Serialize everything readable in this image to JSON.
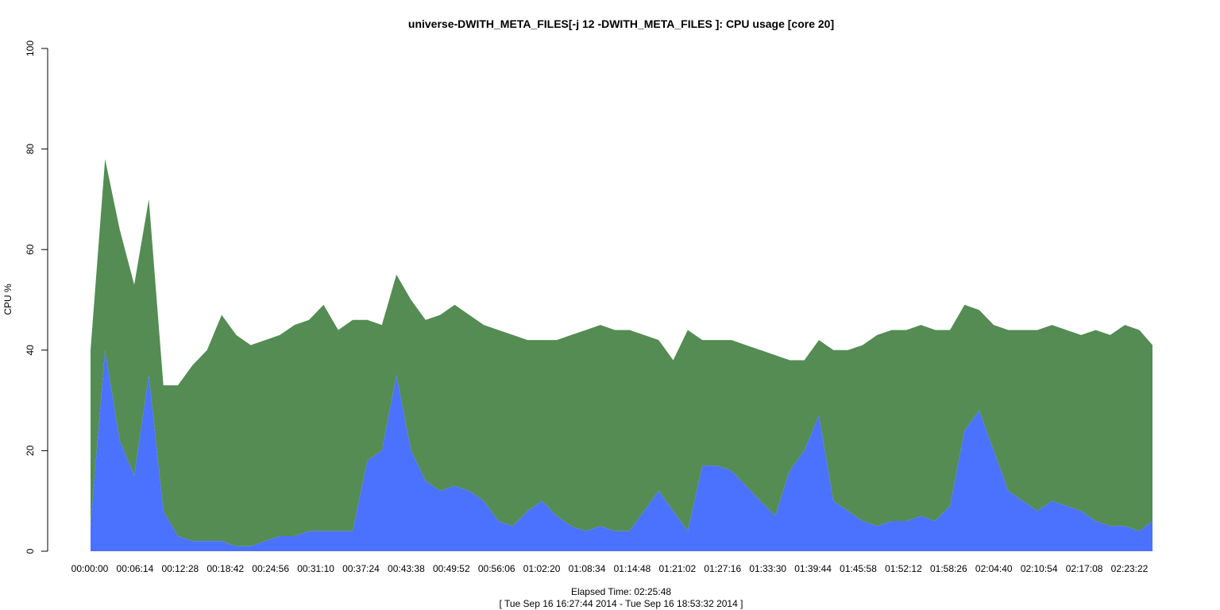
{
  "chart_data": {
    "type": "area",
    "title": "universe-DWITH_META_FILES[-j 12 -DWITH_META_FILES ]: CPU usage [core 20]",
    "xlabel": "Elapsed Time: 02:25:48",
    "xlabel_sub": "[ Tue Sep 16 16:27:44 2014 - Tue Sep 16 18:53:32 2014 ]",
    "ylabel": "CPU %",
    "ylim": [
      0,
      100
    ],
    "yticks": [
      0,
      20,
      40,
      60,
      80,
      100
    ],
    "xlim_seconds": [
      0,
      8748
    ],
    "xtick_labels": [
      "00:00:00",
      "00:06:14",
      "00:12:28",
      "00:18:42",
      "00:24:56",
      "00:31:10",
      "00:37:24",
      "00:43:38",
      "00:49:52",
      "00:56:06",
      "01:02:20",
      "01:08:34",
      "01:14:48",
      "01:21:02",
      "01:27:16",
      "01:33:30",
      "01:39:44",
      "01:45:58",
      "01:52:12",
      "01:58:26",
      "02:04:40",
      "02:10:54",
      "02:17:08",
      "02:23:22"
    ],
    "grid": false,
    "stacked": true,
    "colors": {
      "series_lower": "#4a72ff",
      "series_upper": "#548c54"
    },
    "x": [
      "00:00:00",
      "00:02:00",
      "00:04:00",
      "00:06:00",
      "00:08:00",
      "00:10:00",
      "00:12:00",
      "00:14:00",
      "00:16:00",
      "00:18:00",
      "00:20:00",
      "00:22:00",
      "00:24:00",
      "00:26:00",
      "00:28:00",
      "00:30:00",
      "00:32:00",
      "00:34:00",
      "00:36:00",
      "00:38:00",
      "00:40:00",
      "00:42:00",
      "00:44:00",
      "00:46:00",
      "00:48:00",
      "00:50:00",
      "00:52:00",
      "00:54:00",
      "00:56:00",
      "00:58:00",
      "01:00:00",
      "01:02:00",
      "01:04:00",
      "01:06:00",
      "01:08:00",
      "01:10:00",
      "01:12:00",
      "01:14:00",
      "01:16:00",
      "01:18:00",
      "01:20:00",
      "01:22:00",
      "01:24:00",
      "01:26:00",
      "01:28:00",
      "01:30:00",
      "01:32:00",
      "01:34:00",
      "01:36:00",
      "01:38:00",
      "01:40:00",
      "01:42:00",
      "01:44:00",
      "01:46:00",
      "01:48:00",
      "01:50:00",
      "01:52:00",
      "01:54:00",
      "01:56:00",
      "01:58:00",
      "02:00:00",
      "02:02:00",
      "02:04:00",
      "02:06:00",
      "02:08:00",
      "02:10:00",
      "02:12:00",
      "02:14:00",
      "02:16:00",
      "02:18:00",
      "02:20:00",
      "02:22:00",
      "02:24:00",
      "02:25:48"
    ],
    "series": [
      {
        "values": [
          5,
          40,
          22,
          15,
          35,
          8,
          3,
          2,
          2,
          2,
          1,
          1,
          2,
          3,
          3,
          4,
          4,
          4,
          4,
          18,
          20,
          35,
          20,
          14,
          12,
          13,
          12,
          10,
          6,
          5,
          8,
          10,
          7,
          5,
          4,
          5,
          4,
          4,
          8,
          12,
          8,
          4,
          17,
          17,
          16,
          13,
          10,
          7,
          16,
          20,
          27,
          10,
          8,
          6,
          5,
          6,
          6,
          7,
          6,
          9,
          24,
          28,
          20,
          12,
          10,
          8,
          10,
          9,
          8,
          6,
          5,
          5,
          4,
          6
        ]
      },
      {
        "values": [
          35,
          38,
          42,
          38,
          35,
          25,
          30,
          35,
          38,
          45,
          42,
          40,
          40,
          40,
          42,
          42,
          45,
          40,
          42,
          28,
          25,
          20,
          30,
          32,
          35,
          36,
          35,
          35,
          38,
          38,
          34,
          32,
          35,
          38,
          40,
          40,
          40,
          40,
          35,
          30,
          30,
          40,
          25,
          25,
          26,
          28,
          30,
          32,
          22,
          18,
          15,
          30,
          32,
          35,
          38,
          38,
          38,
          38,
          38,
          35,
          25,
          20,
          25,
          32,
          34,
          36,
          35,
          35,
          35,
          38,
          38,
          40,
          40,
          35
        ]
      }
    ]
  }
}
